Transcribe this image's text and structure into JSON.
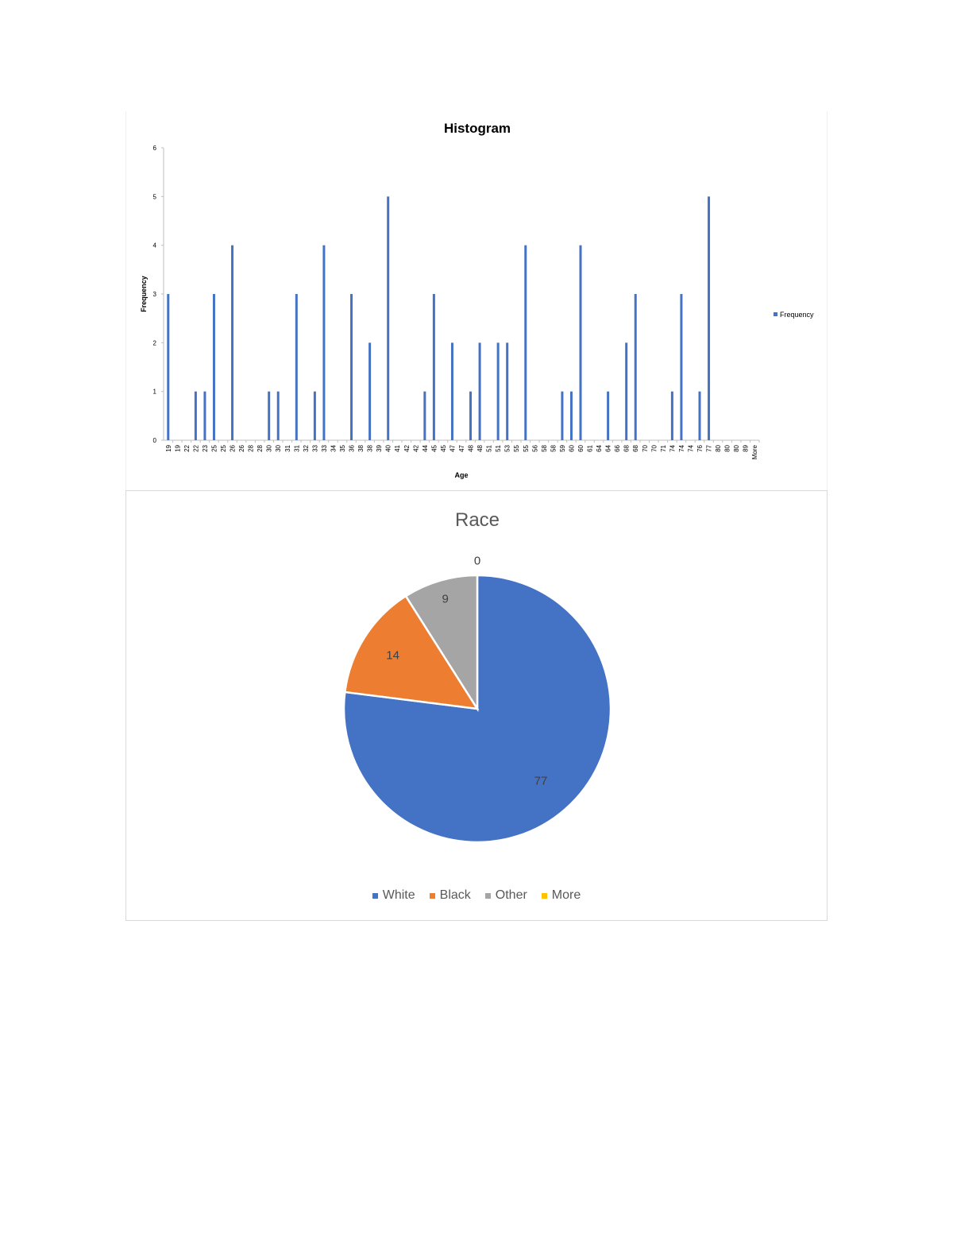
{
  "charts": [
    {
      "type": "bar",
      "title": "Histogram",
      "xlabel": "Age",
      "ylabel": "Frequency",
      "ylim": [
        0,
        6
      ],
      "yticks": [
        "0",
        "1",
        "2",
        "3",
        "4",
        "5",
        "6"
      ],
      "legend": {
        "label": "Frequency",
        "placement": "right"
      },
      "bar_color": "#4472C4",
      "categories": [
        "19",
        "19",
        "22",
        "22",
        "23",
        "25",
        "25",
        "26",
        "26",
        "28",
        "28",
        "30",
        "30",
        "31",
        "31",
        "32",
        "33",
        "33",
        "34",
        "35",
        "36",
        "38",
        "38",
        "39",
        "40",
        "41",
        "42",
        "42",
        "44",
        "45",
        "45",
        "47",
        "47",
        "48",
        "48",
        "51",
        "51",
        "53",
        "55",
        "55",
        "56",
        "58",
        "58",
        "59",
        "60",
        "60",
        "61",
        "64",
        "64",
        "66",
        "68",
        "68",
        "70",
        "70",
        "71",
        "74",
        "74",
        "74",
        "76",
        "77",
        "80",
        "80",
        "80",
        "89",
        "More"
      ],
      "values": [
        3,
        0,
        0,
        1,
        1,
        3,
        0,
        4,
        0,
        0,
        0,
        1,
        1,
        0,
        3,
        0,
        1,
        4,
        0,
        0,
        3,
        0,
        2,
        0,
        5,
        0,
        0,
        0,
        1,
        3,
        0,
        2,
        0,
        1,
        2,
        0,
        2,
        2,
        0,
        4,
        0,
        0,
        0,
        1,
        1,
        4,
        0,
        0,
        1,
        0,
        2,
        3,
        0,
        0,
        0,
        1,
        3,
        0,
        1,
        5,
        0,
        0,
        0,
        0,
        0
      ],
      "note_values_in_order": true
    },
    {
      "type": "pie",
      "title": "Race",
      "categories": [
        "White",
        "Black",
        "Other",
        "More"
      ],
      "values": [
        77,
        14,
        9,
        0
      ],
      "labels": [
        "77",
        "14",
        "9",
        "0"
      ],
      "colors": [
        "#4472C4",
        "#ED7D31",
        "#A5A5A5",
        "#FFC000"
      ],
      "legend": {
        "placement": "bottom"
      }
    }
  ],
  "chart_data": [
    {
      "type": "bar",
      "title": "Histogram",
      "xlabel": "Age",
      "ylabel": "Frequency",
      "ylim": [
        0,
        6
      ],
      "legend": [
        "Frequency"
      ],
      "categories": [
        "19",
        "19",
        "22",
        "22",
        "23",
        "25",
        "25",
        "26",
        "26",
        "28",
        "28",
        "30",
        "30",
        "31",
        "31",
        "32",
        "33",
        "33",
        "34",
        "35",
        "36",
        "38",
        "38",
        "39",
        "40",
        "41",
        "42",
        "42",
        "44",
        "45",
        "45",
        "47",
        "47",
        "48",
        "48",
        "51",
        "51",
        "53",
        "55",
        "55",
        "56",
        "58",
        "58",
        "59",
        "60",
        "60",
        "61",
        "64",
        "64",
        "66",
        "68",
        "68",
        "70",
        "70",
        "71",
        "74",
        "74",
        "74",
        "76",
        "77",
        "80",
        "80",
        "80",
        "89",
        "More"
      ],
      "series": [
        {
          "name": "Frequency",
          "values": [
            3,
            0,
            0,
            1,
            1,
            3,
            0,
            4,
            0,
            0,
            0,
            1,
            1,
            0,
            3,
            0,
            1,
            4,
            0,
            0,
            3,
            0,
            2,
            0,
            5,
            0,
            0,
            0,
            1,
            3,
            0,
            2,
            0,
            1,
            2,
            0,
            2,
            2,
            0,
            4,
            0,
            0,
            0,
            1,
            1,
            4,
            0,
            0,
            1,
            0,
            2,
            3,
            0,
            0,
            0,
            1,
            3,
            0,
            1,
            5,
            0,
            0,
            0,
            0,
            0
          ]
        }
      ]
    },
    {
      "type": "pie",
      "title": "Race",
      "categories": [
        "White",
        "Black",
        "Other",
        "More"
      ],
      "values": [
        77,
        14,
        9,
        0
      ]
    }
  ]
}
